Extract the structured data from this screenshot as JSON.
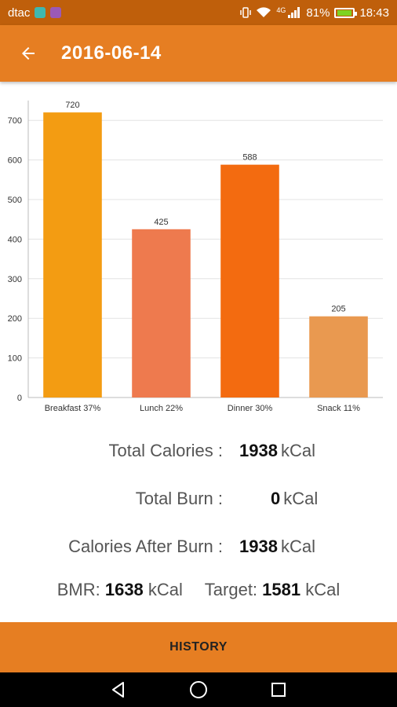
{
  "status_bar": {
    "carrier": "dtac",
    "network": "4G",
    "battery": "81%",
    "time": "18:43"
  },
  "app_bar": {
    "title": "2016-06-14"
  },
  "chart_data": {
    "type": "bar",
    "categories": [
      "Breakfast 37%",
      "Lunch 22%",
      "Dinner 30%",
      "Snack 11%"
    ],
    "values": [
      720,
      425,
      588,
      205
    ],
    "data_labels": [
      "720",
      "425",
      "588",
      "205"
    ],
    "colors": [
      "#f39c12",
      "#ee7a4e",
      "#f36b10",
      "#e99950"
    ],
    "ylim": [
      0,
      750
    ],
    "yticks": [
      0,
      100,
      200,
      300,
      400,
      500,
      600,
      700
    ],
    "grid": true,
    "title": "",
    "xlabel": "",
    "ylabel": ""
  },
  "summary": {
    "total_calories_label": "Total Calories :",
    "total_calories_value": "1938",
    "total_burn_label": "Total Burn :",
    "total_burn_value": "0",
    "after_burn_label": "Calories After Burn :",
    "after_burn_value": "1938",
    "unit": "kCal",
    "bmr_label": "BMR:",
    "bmr_value": "1638",
    "target_label": "Target:",
    "target_value": "1581"
  },
  "history_button": "HISTORY",
  "colors": {
    "accent": "#e67e22",
    "status_bar": "#bf5f0b"
  }
}
